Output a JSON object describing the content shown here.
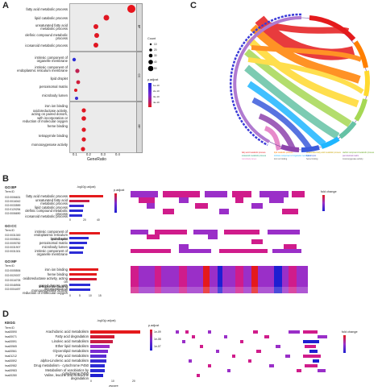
{
  "panels": {
    "a": "A",
    "b": "B",
    "c": "C",
    "d": "D"
  },
  "panel_a": {
    "xlabel": "GeneRatio",
    "x_ticks": [
      "0.1",
      "0.2",
      "0.3",
      "0.4"
    ],
    "facets": [
      "BP",
      "CC",
      "MF"
    ],
    "size_legend_title": "Count",
    "size_legend_values": [
      "10",
      "20",
      "30",
      "40",
      "50"
    ],
    "color_legend_title": "p.adjust",
    "color_legend_values": [
      "1e-10",
      "2e-10",
      "3e-10",
      "4e-10"
    ],
    "terms_bp": [
      "fatty acid metabolic process",
      "lipid catabolic process",
      "unsaturated fatty acid\nmetabolic process",
      "olefinic compound metabolic\nprocess",
      "icosanoid metabolic process"
    ],
    "terms_cc": [
      "intrinsic component of\norganelle membrane",
      "intrinsic component of\nendoplasmic reticulum membrane",
      "lipid droplet",
      "peroxisomal matrix",
      "microbody lumen"
    ],
    "terms_mf": [
      "iron ion binding",
      "oxidoreductase activity,\nacting on paired donors,\nwith incorporation or\nreduction of molecular oxygen",
      "heme binding",
      "tetrapyrrole binding",
      "monooxygenase activity"
    ]
  },
  "panel_c": {
    "legend_items": [
      "fatty acid metabolic process",
      "lipid catabolic process",
      "unsaturated fatty acid metabolic process",
      "olefinic compound metabolic process",
      "icosanoid metabolic process",
      "intrinsic component of organelle membrane",
      "lipid droplet",
      "peroxisomal matrix",
      "microbody lumen",
      "iron ion binding",
      "heme binding",
      "monooxygenase activity"
    ]
  },
  "panel_b": {
    "bar_title": "-log10(p.adjust)",
    "padj_title": "p.adjust",
    "fold_title": "fold change",
    "x_ticks": [
      "0",
      "20",
      "40"
    ],
    "x_ticks_mf": [
      "0",
      "5",
      "10",
      "15"
    ],
    "sections": [
      {
        "label": "GO:BP",
        "id_head": "Term ID",
        "ids": [
          "GO:0006631",
          "GO:0016042",
          "GO:0033559",
          "GO:0120254",
          "GO:0006690"
        ],
        "terms": [
          "fatty acid metabolic process",
          "unsaturated fatty acid\nmetabolic process",
          "lipid catabolic process",
          "olefinic compound metabolic\nprocess",
          "icosanoid metabolic process"
        ]
      },
      {
        "label": "GO:CC",
        "id_head": "Term ID",
        "ids": [
          "GO:0031300",
          "GO:0005811",
          "GO:0005782",
          "GO:0031907",
          "GO:0031301"
        ],
        "terms": [
          "intrinsic component of\nendoplasmic reticulum membrane",
          "lipid droplet",
          "peroxisomal matrix",
          "microbody lumen",
          "intrinsic component of\norganelle membrane"
        ]
      },
      {
        "label": "GO:MF",
        "id_head": "Term ID",
        "ids": [
          "GO:0005506",
          "GO:0020037",
          "GO:0016705",
          "GO:0046906",
          "GO:0004497"
        ],
        "terms": [
          "iron ion binding",
          "heme binding",
          "oxidoreductase activity, acting on\npaired donors, with incorporation or\nreduction of molecular oxygen",
          "tetrapyrrole binding",
          "monooxygenase activity"
        ]
      }
    ]
  },
  "panel_d": {
    "label": "KEGG",
    "id_head": "Term ID",
    "bar_title": "-log10(p.adjust)",
    "xlabel": "zscore",
    "x_ticks": [
      "0",
      "10",
      "20"
    ],
    "padj_title": "p.adjust",
    "padj_values": [
      "1e-09",
      "1e-08",
      "1e-07"
    ],
    "fold_title": "fold change",
    "ids": [
      "hsa00590",
      "hsa00071",
      "hsa00591",
      "hsa00565",
      "hsa00561",
      "hsa01212",
      "hsa00592",
      "hsa00982",
      "hsa00983",
      "hsa00280"
    ],
    "terms": [
      "Arachidonic acid metabolism",
      "Fatty acid degradation",
      "Linoleic acid metabolism",
      "Ether lipid metabolism",
      "Glycerolipid metabolism",
      "Fatty acid metabolism",
      "alpha-Linolenic acid metabolism",
      "Drug metabolism - cytochrome P450",
      "Metabolism of xenobiotics by cytochrome P450",
      "Valine, leucine and isoleucine degradation"
    ]
  },
  "colors": {
    "red": "#e41a1c",
    "blue": "#1f1fd1",
    "purple": "#9a2fc8",
    "magenta": "#d01c8b",
    "grey": "#ebebeb"
  }
}
